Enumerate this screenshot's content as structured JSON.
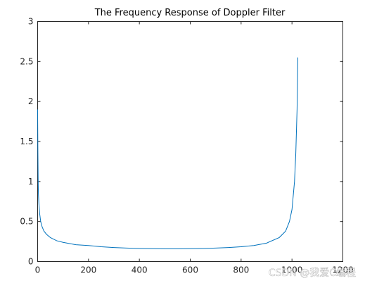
{
  "chart_data": {
    "type": "line",
    "title": "The Frequency Response of Doppler Filter",
    "xlabel": "",
    "ylabel": "",
    "xlim": [
      0,
      1200
    ],
    "ylim": [
      0,
      3
    ],
    "xticks": [
      0,
      200,
      400,
      600,
      800,
      1000,
      1200
    ],
    "yticks": [
      0,
      0.5,
      1,
      1.5,
      2,
      2.5,
      3
    ],
    "xtick_labels": [
      "0",
      "200",
      "400",
      "600",
      "800",
      "1000",
      "1200"
    ],
    "ytick_labels": [
      "0",
      "0.5",
      "1",
      "1.5",
      "2",
      "2.5",
      "3"
    ],
    "grid": false,
    "line_color": "#0072BD",
    "series": [
      {
        "name": "",
        "x": [
          0,
          1,
          2,
          3,
          5,
          8,
          12,
          18,
          25,
          35,
          50,
          75,
          100,
          150,
          200,
          250,
          300,
          350,
          400,
          450,
          500,
          550,
          600,
          650,
          700,
          750,
          800,
          850,
          900,
          950,
          975,
          990,
          1000,
          1010,
          1015,
          1020,
          1022,
          1023
        ],
        "y": [
          1.9,
          1.4,
          1.05,
          0.85,
          0.72,
          0.6,
          0.5,
          0.43,
          0.38,
          0.34,
          0.3,
          0.26,
          0.24,
          0.21,
          0.2,
          0.185,
          0.175,
          0.168,
          0.163,
          0.16,
          0.158,
          0.158,
          0.16,
          0.163,
          0.168,
          0.175,
          0.185,
          0.2,
          0.23,
          0.3,
          0.38,
          0.5,
          0.65,
          1.0,
          1.35,
          1.9,
          2.3,
          2.55
        ]
      }
    ]
  },
  "watermark": "CSDN @我爱C编程"
}
